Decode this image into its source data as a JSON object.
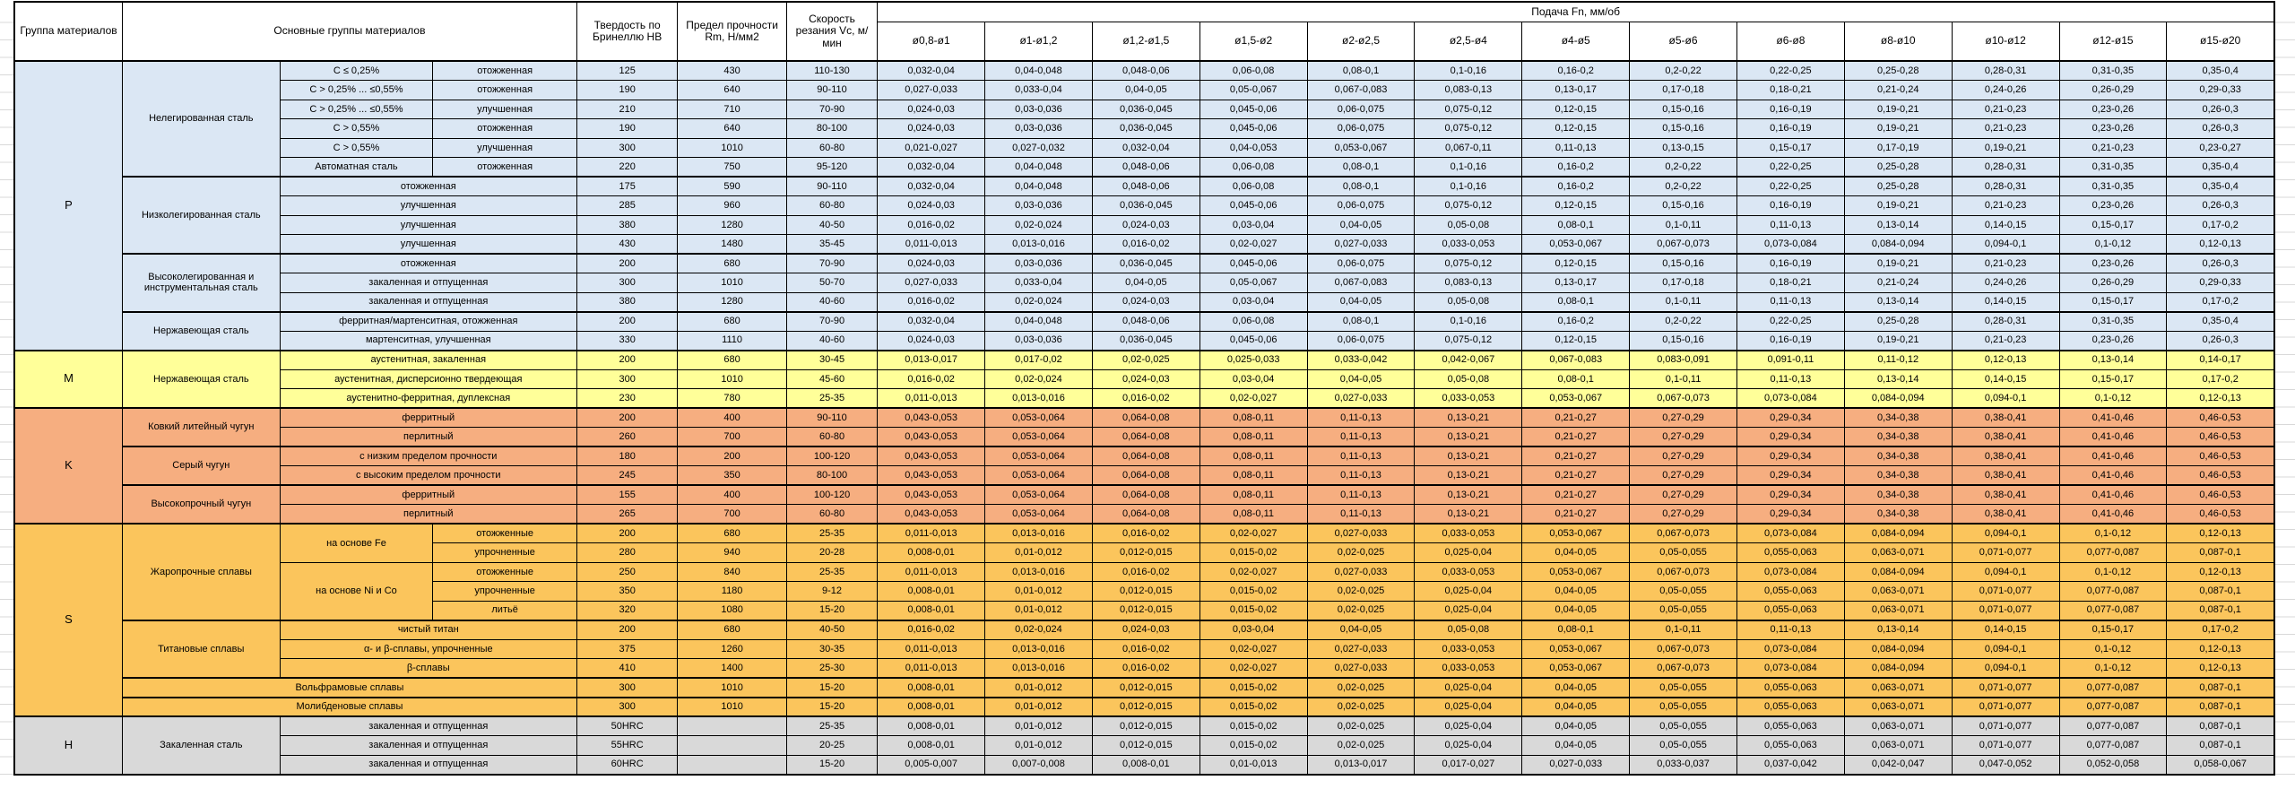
{
  "header": {
    "col_group": "Группа материалов",
    "col_materials": "Основные группы материалов",
    "col_hardness": "Твердость по Бринеллю HB",
    "col_strength": "Предел прочности Rm, Н/мм2",
    "col_speed": "Скорость резания Vc, м/мин",
    "col_feed": "Подача Fn, мм/об",
    "feed_columns": [
      "ø0,8-ø1",
      "ø1-ø1,2",
      "ø1,2-ø1,5",
      "ø1,5-ø2",
      "ø2-ø2,5",
      "ø2,5-ø4",
      "ø4-ø5",
      "ø5-ø6",
      "ø6-ø8",
      "ø8-ø10",
      "ø10-ø12",
      "ø12-ø15",
      "ø15-ø20"
    ]
  },
  "colors": {
    "P": "#dbe7f4",
    "M": "#ffff99",
    "K": "#f6ae80",
    "S": "#fbc55c",
    "H": "#d9d9d9",
    "border": "#000000",
    "header_bg": "#ffffff"
  },
  "rows": [
    {
      "g": "P",
      "sep": true,
      "cells": [
        [
          "P",
          15,
          1,
          "glet"
        ],
        [
          "Нелегированная сталь",
          6
        ],
        "C ≤ 0,25%",
        "отожженная",
        "125",
        "430",
        "110-130",
        "0,032-0,04",
        "0,04-0,048",
        "0,048-0,06",
        "0,06-0,08",
        "0,08-0,1",
        "0,1-0,16",
        "0,16-0,2",
        "0,2-0,22",
        "0,22-0,25",
        "0,25-0,28",
        "0,28-0,31",
        "0,31-0,35",
        "0,35-0,4"
      ]
    },
    {
      "g": "P",
      "cells": [
        "C > 0,25% ... ≤0,55%",
        "отожженная",
        "190",
        "640",
        "90-110",
        "0,027-0,033",
        "0,033-0,04",
        "0,04-0,05",
        "0,05-0,067",
        "0,067-0,083",
        "0,083-0,13",
        "0,13-0,17",
        "0,17-0,18",
        "0,18-0,21",
        "0,21-0,24",
        "0,24-0,26",
        "0,26-0,29",
        "0,29-0,33"
      ]
    },
    {
      "g": "P",
      "cells": [
        "C > 0,25% ... ≤0,55%",
        "улучшенная",
        "210",
        "710",
        "70-90",
        "0,024-0,03",
        "0,03-0,036",
        "0,036-0,045",
        "0,045-0,06",
        "0,06-0,075",
        "0,075-0,12",
        "0,12-0,15",
        "0,15-0,16",
        "0,16-0,19",
        "0,19-0,21",
        "0,21-0,23",
        "0,23-0,26",
        "0,26-0,3"
      ]
    },
    {
      "g": "P",
      "cells": [
        "C > 0,55%",
        "отожженная",
        "190",
        "640",
        "80-100",
        "0,024-0,03",
        "0,03-0,036",
        "0,036-0,045",
        "0,045-0,06",
        "0,06-0,075",
        "0,075-0,12",
        "0,12-0,15",
        "0,15-0,16",
        "0,16-0,19",
        "0,19-0,21",
        "0,21-0,23",
        "0,23-0,26",
        "0,26-0,3"
      ]
    },
    {
      "g": "P",
      "cells": [
        "C > 0,55%",
        "улучшенная",
        "300",
        "1010",
        "60-80",
        "0,021-0,027",
        "0,027-0,032",
        "0,032-0,04",
        "0,04-0,053",
        "0,053-0,067",
        "0,067-0,11",
        "0,11-0,13",
        "0,13-0,15",
        "0,15-0,17",
        "0,17-0,19",
        "0,19-0,21",
        "0,21-0,23",
        "0,23-0,27"
      ]
    },
    {
      "g": "P",
      "cells": [
        "Автоматная сталь",
        "отожженная",
        "220",
        "750",
        "95-120",
        "0,032-0,04",
        "0,04-0,048",
        "0,048-0,06",
        "0,06-0,08",
        "0,08-0,1",
        "0,1-0,16",
        "0,16-0,2",
        "0,2-0,22",
        "0,22-0,25",
        "0,25-0,28",
        "0,28-0,31",
        "0,31-0,35",
        "0,35-0,4"
      ]
    },
    {
      "g": "P",
      "sep": true,
      "cells": [
        [
          "Низколегированная сталь",
          4
        ],
        [
          "отожженная",
          1,
          2
        ],
        "175",
        "590",
        "90-110",
        "0,032-0,04",
        "0,04-0,048",
        "0,048-0,06",
        "0,06-0,08",
        "0,08-0,1",
        "0,1-0,16",
        "0,16-0,2",
        "0,2-0,22",
        "0,22-0,25",
        "0,25-0,28",
        "0,28-0,31",
        "0,31-0,35",
        "0,35-0,4"
      ]
    },
    {
      "g": "P",
      "cells": [
        [
          "улучшенная",
          1,
          2
        ],
        "285",
        "960",
        "60-80",
        "0,024-0,03",
        "0,03-0,036",
        "0,036-0,045",
        "0,045-0,06",
        "0,06-0,075",
        "0,075-0,12",
        "0,12-0,15",
        "0,15-0,16",
        "0,16-0,19",
        "0,19-0,21",
        "0,21-0,23",
        "0,23-0,26",
        "0,26-0,3"
      ]
    },
    {
      "g": "P",
      "cells": [
        [
          "улучшенная",
          1,
          2
        ],
        "380",
        "1280",
        "40-50",
        "0,016-0,02",
        "0,02-0,024",
        "0,024-0,03",
        "0,03-0,04",
        "0,04-0,05",
        "0,05-0,08",
        "0,08-0,1",
        "0,1-0,11",
        "0,11-0,13",
        "0,13-0,14",
        "0,14-0,15",
        "0,15-0,17",
        "0,17-0,2"
      ]
    },
    {
      "g": "P",
      "cells": [
        [
          "улучшенная",
          1,
          2
        ],
        "430",
        "1480",
        "35-45",
        "0,011-0,013",
        "0,013-0,016",
        "0,016-0,02",
        "0,02-0,027",
        "0,027-0,033",
        "0,033-0,053",
        "0,053-0,067",
        "0,067-0,073",
        "0,073-0,084",
        "0,084-0,094",
        "0,094-0,1",
        "0,1-0,12",
        "0,12-0,13"
      ]
    },
    {
      "g": "P",
      "sep": true,
      "cells": [
        [
          "Высоколегированная и инструментальная сталь",
          3
        ],
        [
          "отожженная",
          1,
          2
        ],
        "200",
        "680",
        "70-90",
        "0,024-0,03",
        "0,03-0,036",
        "0,036-0,045",
        "0,045-0,06",
        "0,06-0,075",
        "0,075-0,12",
        "0,12-0,15",
        "0,15-0,16",
        "0,16-0,19",
        "0,19-0,21",
        "0,21-0,23",
        "0,23-0,26",
        "0,26-0,3"
      ]
    },
    {
      "g": "P",
      "cells": [
        [
          "закаленная и отпущенная",
          1,
          2
        ],
        "300",
        "1010",
        "50-70",
        "0,027-0,033",
        "0,033-0,04",
        "0,04-0,05",
        "0,05-0,067",
        "0,067-0,083",
        "0,083-0,13",
        "0,13-0,17",
        "0,17-0,18",
        "0,18-0,21",
        "0,21-0,24",
        "0,24-0,26",
        "0,26-0,29",
        "0,29-0,33"
      ]
    },
    {
      "g": "P",
      "cells": [
        [
          "закаленная и отпущенная",
          1,
          2
        ],
        "380",
        "1280",
        "40-60",
        "0,016-0,02",
        "0,02-0,024",
        "0,024-0,03",
        "0,03-0,04",
        "0,04-0,05",
        "0,05-0,08",
        "0,08-0,1",
        "0,1-0,11",
        "0,11-0,13",
        "0,13-0,14",
        "0,14-0,15",
        "0,15-0,17",
        "0,17-0,2"
      ]
    },
    {
      "g": "P",
      "sep": true,
      "cells": [
        [
          "Нержавеющая сталь",
          2
        ],
        [
          "ферритная/мартенситная, отожженная",
          1,
          2
        ],
        "200",
        "680",
        "70-90",
        "0,032-0,04",
        "0,04-0,048",
        "0,048-0,06",
        "0,06-0,08",
        "0,08-0,1",
        "0,1-0,16",
        "0,16-0,2",
        "0,2-0,22",
        "0,22-0,25",
        "0,25-0,28",
        "0,28-0,31",
        "0,31-0,35",
        "0,35-0,4"
      ]
    },
    {
      "g": "P",
      "cells": [
        [
          "мартенситная, улучшенная",
          1,
          2
        ],
        "330",
        "1110",
        "40-60",
        "0,024-0,03",
        "0,03-0,036",
        "0,036-0,045",
        "0,045-0,06",
        "0,06-0,075",
        "0,075-0,12",
        "0,12-0,15",
        "0,15-0,16",
        "0,16-0,19",
        "0,19-0,21",
        "0,21-0,23",
        "0,23-0,26",
        "0,26-0,3"
      ]
    },
    {
      "g": "M",
      "sep": true,
      "cells": [
        [
          "M",
          3,
          1,
          "glet"
        ],
        [
          "Нержавеющая сталь",
          3
        ],
        [
          "аустенитная, закаленная",
          1,
          2
        ],
        "200",
        "680",
        "30-45",
        "0,013-0,017",
        "0,017-0,02",
        "0,02-0,025",
        "0,025-0,033",
        "0,033-0,042",
        "0,042-0,067",
        "0,067-0,083",
        "0,083-0,091",
        "0,091-0,11",
        "0,11-0,12",
        "0,12-0,13",
        "0,13-0,14",
        "0,14-0,17"
      ]
    },
    {
      "g": "M",
      "cells": [
        [
          "аустенитная, дисперсионно твердеющая",
          1,
          2
        ],
        "300",
        "1010",
        "45-60",
        "0,016-0,02",
        "0,02-0,024",
        "0,024-0,03",
        "0,03-0,04",
        "0,04-0,05",
        "0,05-0,08",
        "0,08-0,1",
        "0,1-0,11",
        "0,11-0,13",
        "0,13-0,14",
        "0,14-0,15",
        "0,15-0,17",
        "0,17-0,2"
      ]
    },
    {
      "g": "M",
      "cells": [
        [
          "аустенитно-ферритная, дуплексная",
          1,
          2
        ],
        "230",
        "780",
        "25-35",
        "0,011-0,013",
        "0,013-0,016",
        "0,016-0,02",
        "0,02-0,027",
        "0,027-0,033",
        "0,033-0,053",
        "0,053-0,067",
        "0,067-0,073",
        "0,073-0,084",
        "0,084-0,094",
        "0,094-0,1",
        "0,1-0,12",
        "0,12-0,13"
      ]
    },
    {
      "g": "K",
      "sep": true,
      "cells": [
        [
          "K",
          6,
          1,
          "glet"
        ],
        [
          "Ковкий литейный чугун",
          2
        ],
        [
          "ферритный",
          1,
          2
        ],
        "200",
        "400",
        "90-110",
        "0,043-0,053",
        "0,053-0,064",
        "0,064-0,08",
        "0,08-0,11",
        "0,11-0,13",
        "0,13-0,21",
        "0,21-0,27",
        "0,27-0,29",
        "0,29-0,34",
        "0,34-0,38",
        "0,38-0,41",
        "0,41-0,46",
        "0,46-0,53"
      ]
    },
    {
      "g": "K",
      "cells": [
        [
          "перлитный",
          1,
          2
        ],
        "260",
        "700",
        "60-80",
        "0,043-0,053",
        "0,053-0,064",
        "0,064-0,08",
        "0,08-0,11",
        "0,11-0,13",
        "0,13-0,21",
        "0,21-0,27",
        "0,27-0,29",
        "0,29-0,34",
        "0,34-0,38",
        "0,38-0,41",
        "0,41-0,46",
        "0,46-0,53"
      ]
    },
    {
      "g": "K",
      "sep": true,
      "cells": [
        [
          "Серый чугун",
          2
        ],
        [
          "с низким пределом прочности",
          1,
          2
        ],
        "180",
        "200",
        "100-120",
        "0,043-0,053",
        "0,053-0,064",
        "0,064-0,08",
        "0,08-0,11",
        "0,11-0,13",
        "0,13-0,21",
        "0,21-0,27",
        "0,27-0,29",
        "0,29-0,34",
        "0,34-0,38",
        "0,38-0,41",
        "0,41-0,46",
        "0,46-0,53"
      ]
    },
    {
      "g": "K",
      "cells": [
        [
          "с высоким пределом прочности",
          1,
          2
        ],
        "245",
        "350",
        "80-100",
        "0,043-0,053",
        "0,053-0,064",
        "0,064-0,08",
        "0,08-0,11",
        "0,11-0,13",
        "0,13-0,21",
        "0,21-0,27",
        "0,27-0,29",
        "0,29-0,34",
        "0,34-0,38",
        "0,38-0,41",
        "0,41-0,46",
        "0,46-0,53"
      ]
    },
    {
      "g": "K",
      "sep": true,
      "cells": [
        [
          "Высокопрочный чугун",
          2
        ],
        [
          "ферритный",
          1,
          2
        ],
        "155",
        "400",
        "100-120",
        "0,043-0,053",
        "0,053-0,064",
        "0,064-0,08",
        "0,08-0,11",
        "0,11-0,13",
        "0,13-0,21",
        "0,21-0,27",
        "0,27-0,29",
        "0,29-0,34",
        "0,34-0,38",
        "0,38-0,41",
        "0,41-0,46",
        "0,46-0,53"
      ]
    },
    {
      "g": "K",
      "cells": [
        [
          "перлитный",
          1,
          2
        ],
        "265",
        "700",
        "60-80",
        "0,043-0,053",
        "0,053-0,064",
        "0,064-0,08",
        "0,08-0,11",
        "0,11-0,13",
        "0,13-0,21",
        "0,21-0,27",
        "0,27-0,29",
        "0,29-0,34",
        "0,34-0,38",
        "0,38-0,41",
        "0,41-0,46",
        "0,46-0,53"
      ]
    },
    {
      "g": "S",
      "sep": true,
      "cells": [
        [
          "S",
          10,
          1,
          "glet"
        ],
        [
          "Жаропрочные сплавы",
          5
        ],
        [
          "на основе Fe",
          2
        ],
        "отожженные",
        "200",
        "680",
        "25-35",
        "0,011-0,013",
        "0,013-0,016",
        "0,016-0,02",
        "0,02-0,027",
        "0,027-0,033",
        "0,033-0,053",
        "0,053-0,067",
        "0,067-0,073",
        "0,073-0,084",
        "0,084-0,094",
        "0,094-0,1",
        "0,1-0,12",
        "0,12-0,13"
      ]
    },
    {
      "g": "S",
      "cells": [
        "упрочненные",
        "280",
        "940",
        "20-28",
        "0,008-0,01",
        "0,01-0,012",
        "0,012-0,015",
        "0,015-0,02",
        "0,02-0,025",
        "0,025-0,04",
        "0,04-0,05",
        "0,05-0,055",
        "0,055-0,063",
        "0,063-0,071",
        "0,071-0,077",
        "0,077-0,087",
        "0,087-0,1"
      ]
    },
    {
      "g": "S",
      "cells": [
        [
          "на основе Ni и Co",
          3
        ],
        "отожженные",
        "250",
        "840",
        "25-35",
        "0,011-0,013",
        "0,013-0,016",
        "0,016-0,02",
        "0,02-0,027",
        "0,027-0,033",
        "0,033-0,053",
        "0,053-0,067",
        "0,067-0,073",
        "0,073-0,084",
        "0,084-0,094",
        "0,094-0,1",
        "0,1-0,12",
        "0,12-0,13"
      ]
    },
    {
      "g": "S",
      "cells": [
        "упрочненные",
        "350",
        "1180",
        "9-12",
        "0,008-0,01",
        "0,01-0,012",
        "0,012-0,015",
        "0,015-0,02",
        "0,02-0,025",
        "0,025-0,04",
        "0,04-0,05",
        "0,05-0,055",
        "0,055-0,063",
        "0,063-0,071",
        "0,071-0,077",
        "0,077-0,087",
        "0,087-0,1"
      ]
    },
    {
      "g": "S",
      "cells": [
        "литьё",
        "320",
        "1080",
        "15-20",
        "0,008-0,01",
        "0,01-0,012",
        "0,012-0,015",
        "0,015-0,02",
        "0,02-0,025",
        "0,025-0,04",
        "0,04-0,05",
        "0,05-0,055",
        "0,055-0,063",
        "0,063-0,071",
        "0,071-0,077",
        "0,077-0,087",
        "0,087-0,1"
      ]
    },
    {
      "g": "S",
      "sep": true,
      "cells": [
        [
          "Титановые сплавы",
          3
        ],
        [
          "чистый титан",
          1,
          2
        ],
        "200",
        "680",
        "40-50",
        "0,016-0,02",
        "0,02-0,024",
        "0,024-0,03",
        "0,03-0,04",
        "0,04-0,05",
        "0,05-0,08",
        "0,08-0,1",
        "0,1-0,11",
        "0,11-0,13",
        "0,13-0,14",
        "0,14-0,15",
        "0,15-0,17",
        "0,17-0,2"
      ]
    },
    {
      "g": "S",
      "cells": [
        [
          "α- и β-сплавы, упрочненные",
          1,
          2
        ],
        "375",
        "1260",
        "30-35",
        "0,011-0,013",
        "0,013-0,016",
        "0,016-0,02",
        "0,02-0,027",
        "0,027-0,033",
        "0,033-0,053",
        "0,053-0,067",
        "0,067-0,073",
        "0,073-0,084",
        "0,084-0,094",
        "0,094-0,1",
        "0,1-0,12",
        "0,12-0,13"
      ]
    },
    {
      "g": "S",
      "cells": [
        [
          "β-сплавы",
          1,
          2
        ],
        "410",
        "1400",
        "25-30",
        "0,011-0,013",
        "0,013-0,016",
        "0,016-0,02",
        "0,02-0,027",
        "0,027-0,033",
        "0,033-0,053",
        "0,053-0,067",
        "0,067-0,073",
        "0,073-0,084",
        "0,084-0,094",
        "0,094-0,1",
        "0,1-0,12",
        "0,12-0,13"
      ]
    },
    {
      "g": "S",
      "sep": true,
      "cells": [
        [
          "Вольфрамовые сплавы",
          1,
          3
        ],
        "300",
        "1010",
        "15-20",
        "0,008-0,01",
        "0,01-0,012",
        "0,012-0,015",
        "0,015-0,02",
        "0,02-0,025",
        "0,025-0,04",
        "0,04-0,05",
        "0,05-0,055",
        "0,055-0,063",
        "0,063-0,071",
        "0,071-0,077",
        "0,077-0,087",
        "0,087-0,1"
      ]
    },
    {
      "g": "S",
      "sep": true,
      "cells": [
        [
          "Молибденовые сплавы",
          1,
          3
        ],
        "300",
        "1010",
        "15-20",
        "0,008-0,01",
        "0,01-0,012",
        "0,012-0,015",
        "0,015-0,02",
        "0,02-0,025",
        "0,025-0,04",
        "0,04-0,05",
        "0,05-0,055",
        "0,055-0,063",
        "0,063-0,071",
        "0,071-0,077",
        "0,077-0,087",
        "0,087-0,1"
      ]
    },
    {
      "g": "H",
      "sep": true,
      "cells": [
        [
          "H",
          3,
          1,
          "glet"
        ],
        [
          "Закаленная сталь",
          3
        ],
        [
          "закаленная и отпущенная",
          1,
          2
        ],
        "50HRC",
        "",
        "25-35",
        "0,008-0,01",
        "0,01-0,012",
        "0,012-0,015",
        "0,015-0,02",
        "0,02-0,025",
        "0,025-0,04",
        "0,04-0,05",
        "0,05-0,055",
        "0,055-0,063",
        "0,063-0,071",
        "0,071-0,077",
        "0,077-0,087",
        "0,087-0,1"
      ]
    },
    {
      "g": "H",
      "cells": [
        [
          "закаленная и отпущенная",
          1,
          2
        ],
        "55HRC",
        "",
        "20-25",
        "0,008-0,01",
        "0,01-0,012",
        "0,012-0,015",
        "0,015-0,02",
        "0,02-0,025",
        "0,025-0,04",
        "0,04-0,05",
        "0,05-0,055",
        "0,055-0,063",
        "0,063-0,071",
        "0,071-0,077",
        "0,077-0,087",
        "0,087-0,1"
      ]
    },
    {
      "g": "H",
      "cells": [
        [
          "закаленная и отпущенная",
          1,
          2
        ],
        "60HRC",
        "",
        "15-20",
        "0,005-0,007",
        "0,007-0,008",
        "0,008-0,01",
        "0,01-0,013",
        "0,013-0,017",
        "0,017-0,027",
        "0,027-0,033",
        "0,033-0,037",
        "0,037-0,042",
        "0,042-0,047",
        "0,047-0,052",
        "0,052-0,058",
        "0,058-0,067"
      ]
    }
  ]
}
